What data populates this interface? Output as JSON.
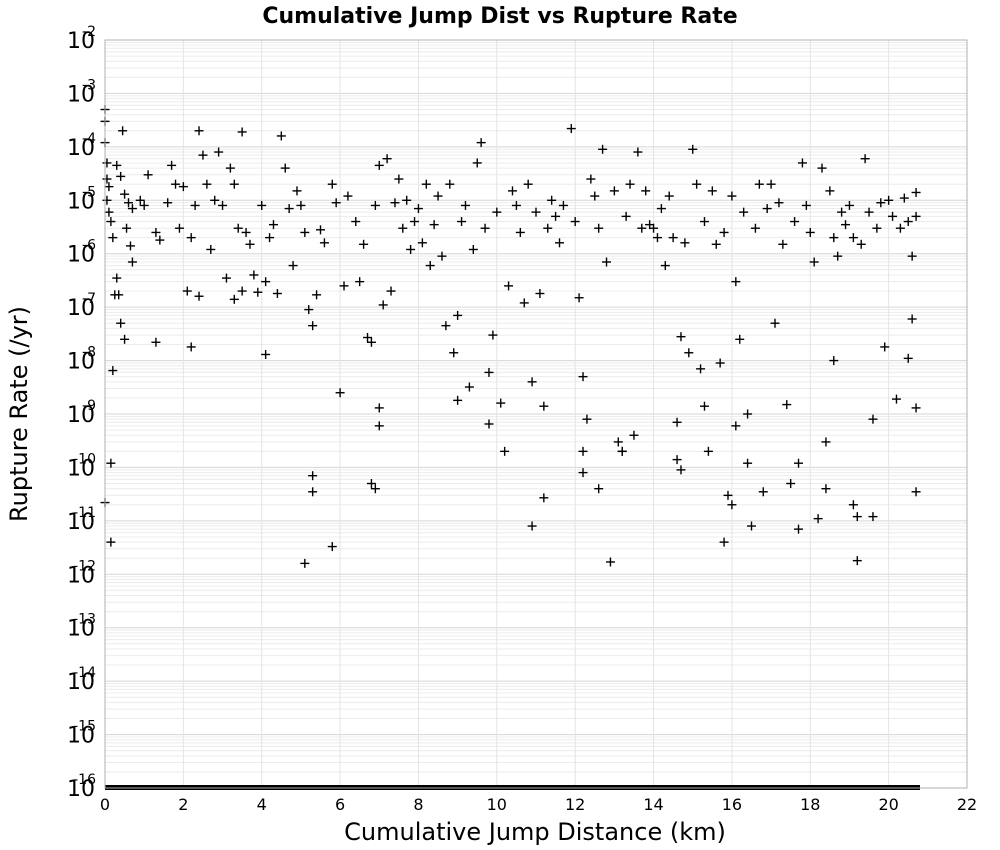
{
  "chart_data": {
    "type": "scatter",
    "title": "Cumulative Jump Dist vs Rupture Rate",
    "xlabel": "Cumulative Jump Distance (km)",
    "ylabel": "Rupture Rate (/yr)",
    "xlim": [
      0,
      22
    ],
    "ylim": [
      1e-16,
      0.01
    ],
    "yscale": "log",
    "grid": true,
    "marker": "+",
    "marker_color": "#000000",
    "x_ticks": [
      "0",
      "2",
      "4",
      "6",
      "8",
      "10",
      "12",
      "14",
      "16",
      "18",
      "20",
      "22"
    ],
    "y_ticks": [
      {
        "base": "10",
        "exp": "-16"
      },
      {
        "base": "10",
        "exp": "-15"
      },
      {
        "base": "10",
        "exp": "-14"
      },
      {
        "base": "10",
        "exp": "-13"
      },
      {
        "base": "10",
        "exp": "-12"
      },
      {
        "base": "10",
        "exp": "-11"
      },
      {
        "base": "10",
        "exp": "-10"
      },
      {
        "base": "10",
        "exp": "-9"
      },
      {
        "base": "10",
        "exp": "-8"
      },
      {
        "base": "10",
        "exp": "-7"
      },
      {
        "base": "10",
        "exp": "-6"
      },
      {
        "base": "10",
        "exp": "-5"
      },
      {
        "base": "10",
        "exp": "-4"
      },
      {
        "base": "10",
        "exp": "-3"
      },
      {
        "base": "10",
        "exp": "-2"
      }
    ],
    "zero_rate_band": {
      "x_range": [
        0,
        20.8
      ],
      "y": 1e-16
    },
    "points": [
      [
        0.0,
        0.0005
      ],
      [
        0.0,
        0.0003
      ],
      [
        0.0,
        0.00012
      ],
      [
        0.05,
        5e-05
      ],
      [
        0.05,
        2.5e-05
      ],
      [
        0.1,
        1.8e-05
      ],
      [
        0.05,
        1e-05
      ],
      [
        0.1,
        6e-06
      ],
      [
        0.15,
        4e-06
      ],
      [
        0.2,
        2e-06
      ],
      [
        0.25,
        1.7e-07
      ],
      [
        0.3,
        3.5e-07
      ],
      [
        0.35,
        1.7e-07
      ],
      [
        0.4,
        5e-08
      ],
      [
        0.5,
        2.5e-08
      ],
      [
        0.2,
        6.5e-09
      ],
      [
        0.15,
        1.2e-10
      ],
      [
        0.0,
        2.2e-11
      ],
      [
        0.15,
        4e-12
      ],
      [
        0.45,
        0.0002
      ],
      [
        0.3,
        4.5e-05
      ],
      [
        0.4,
        2.8e-05
      ],
      [
        0.5,
        1.3e-05
      ],
      [
        0.6,
        9e-06
      ],
      [
        0.7,
        7e-06
      ],
      [
        0.55,
        3e-06
      ],
      [
        0.65,
        1.4e-06
      ],
      [
        0.7,
        7e-07
      ],
      [
        0.9,
        1e-05
      ],
      [
        1.0,
        8e-06
      ],
      [
        1.1,
        3e-05
      ],
      [
        1.3,
        2.5e-06
      ],
      [
        1.4,
        1.8e-06
      ],
      [
        1.6,
        9e-06
      ],
      [
        1.7,
        4.5e-05
      ],
      [
        1.8,
        2e-05
      ],
      [
        1.9,
        3e-06
      ],
      [
        1.3,
        2.2e-08
      ],
      [
        2.0,
        1.8e-05
      ],
      [
        2.1,
        2e-07
      ],
      [
        2.2,
        2e-06
      ],
      [
        2.3,
        8e-06
      ],
      [
        2.4,
        0.0002
      ],
      [
        2.5,
        7e-05
      ],
      [
        2.6,
        2e-05
      ],
      [
        2.7,
        1.2e-06
      ],
      [
        2.8,
        1e-05
      ],
      [
        2.9,
        8e-05
      ],
      [
        2.2,
        1.8e-08
      ],
      [
        2.4,
        1.6e-07
      ],
      [
        3.0,
        8e-06
      ],
      [
        3.1,
        3.5e-07
      ],
      [
        3.2,
        4e-05
      ],
      [
        3.3,
        2e-05
      ],
      [
        3.4,
        3e-06
      ],
      [
        3.5,
        0.00019
      ],
      [
        3.6,
        2.5e-06
      ],
      [
        3.7,
        1.5e-06
      ],
      [
        3.8,
        4e-07
      ],
      [
        3.9,
        1.9e-07
      ],
      [
        3.3,
        1.4e-07
      ],
      [
        3.5,
        2e-07
      ],
      [
        4.0,
        8e-06
      ],
      [
        4.1,
        3e-07
      ],
      [
        4.2,
        2e-06
      ],
      [
        4.3,
        3.5e-06
      ],
      [
        4.5,
        0.00016
      ],
      [
        4.6,
        4e-05
      ],
      [
        4.7,
        7e-06
      ],
      [
        4.8,
        6e-07
      ],
      [
        4.9,
        1.5e-05
      ],
      [
        4.4,
        1.8e-07
      ],
      [
        4.1,
        1.3e-08
      ],
      [
        5.0,
        8e-06
      ],
      [
        5.1,
        2.5e-06
      ],
      [
        5.2,
        9e-08
      ],
      [
        5.3,
        4.5e-08
      ],
      [
        5.4,
        1.7e-07
      ],
      [
        5.5,
        2.8e-06
      ],
      [
        5.6,
        1.6e-06
      ],
      [
        5.8,
        2e-05
      ],
      [
        5.9,
        9e-06
      ],
      [
        5.3,
        7e-11
      ],
      [
        5.3,
        3.5e-11
      ],
      [
        5.1,
        1.6e-12
      ],
      [
        6.0,
        2.5e-09
      ],
      [
        6.1,
        2.5e-07
      ],
      [
        6.2,
        1.2e-05
      ],
      [
        6.4,
        4e-06
      ],
      [
        6.5,
        3e-07
      ],
      [
        6.6,
        1.5e-06
      ],
      [
        6.7,
        2.7e-08
      ],
      [
        6.8,
        2.2e-08
      ],
      [
        6.9,
        8e-06
      ],
      [
        5.8,
        3.3e-12
      ],
      [
        7.0,
        4.5e-05
      ],
      [
        7.1,
        1.1e-07
      ],
      [
        7.2,
        6e-05
      ],
      [
        7.3,
        2e-07
      ],
      [
        7.4,
        9e-06
      ],
      [
        7.5,
        2.5e-05
      ],
      [
        7.6,
        3e-06
      ],
      [
        7.7,
        1e-05
      ],
      [
        7.8,
        1.2e-06
      ],
      [
        7.9,
        4e-06
      ],
      [
        7.0,
        1.3e-09
      ],
      [
        7.0,
        6e-10
      ],
      [
        6.8,
        5e-11
      ],
      [
        6.9,
        4e-11
      ],
      [
        8.0,
        7e-06
      ],
      [
        8.1,
        1.6e-06
      ],
      [
        8.2,
        2e-05
      ],
      [
        8.3,
        6e-07
      ],
      [
        8.4,
        3.5e-06
      ],
      [
        8.5,
        1.2e-05
      ],
      [
        8.6,
        9e-07
      ],
      [
        8.7,
        4.5e-08
      ],
      [
        8.8,
        2e-05
      ],
      [
        8.9,
        1.4e-08
      ],
      [
        9.0,
        1.8e-09
      ],
      [
        9.1,
        4e-06
      ],
      [
        9.2,
        8e-06
      ],
      [
        9.3,
        3.2e-09
      ],
      [
        9.4,
        1.2e-06
      ],
      [
        9.5,
        5e-05
      ],
      [
        9.6,
        0.00012
      ],
      [
        9.7,
        3e-06
      ],
      [
        9.8,
        6e-09
      ],
      [
        9.9,
        3e-08
      ],
      [
        9.0,
        7e-08
      ],
      [
        9.8,
        6.5e-10
      ],
      [
        10.0,
        6e-06
      ],
      [
        10.1,
        1.6e-09
      ],
      [
        10.2,
        2e-10
      ],
      [
        10.3,
        2.5e-07
      ],
      [
        10.4,
        1.5e-05
      ],
      [
        10.5,
        8e-06
      ],
      [
        10.6,
        2.5e-06
      ],
      [
        10.7,
        1.2e-07
      ],
      [
        10.8,
        2e-05
      ],
      [
        10.9,
        4e-09
      ],
      [
        11.0,
        6e-06
      ],
      [
        11.1,
        1.8e-07
      ],
      [
        11.2,
        1.4e-09
      ],
      [
        11.3,
        3e-06
      ],
      [
        11.4,
        1e-05
      ],
      [
        11.5,
        5e-06
      ],
      [
        11.6,
        1.6e-06
      ],
      [
        11.7,
        8e-06
      ],
      [
        11.9,
        0.00022
      ],
      [
        11.2,
        2.7e-11
      ],
      [
        10.9,
        8e-12
      ],
      [
        12.0,
        4e-06
      ],
      [
        12.1,
        1.5e-07
      ],
      [
        12.2,
        5e-09
      ],
      [
        12.3,
        8e-10
      ],
      [
        12.4,
        2.5e-05
      ],
      [
        12.5,
        1.2e-05
      ],
      [
        12.6,
        3e-06
      ],
      [
        12.7,
        9e-05
      ],
      [
        12.8,
        7e-07
      ],
      [
        12.9,
        1.7e-12
      ],
      [
        12.2,
        2e-10
      ],
      [
        12.2,
        8e-11
      ],
      [
        12.6,
        4e-11
      ],
      [
        13.0,
        1.5e-05
      ],
      [
        13.1,
        3e-10
      ],
      [
        13.2,
        2e-10
      ],
      [
        13.3,
        5e-06
      ],
      [
        13.4,
        2e-05
      ],
      [
        13.5,
        4e-10
      ],
      [
        13.6,
        8e-05
      ],
      [
        13.7,
        3e-06
      ],
      [
        13.8,
        1.5e-05
      ],
      [
        13.9,
        3.5e-06
      ],
      [
        13.2,
        2e-10
      ],
      [
        14.0,
        3e-06
      ],
      [
        14.1,
        2e-06
      ],
      [
        14.2,
        7e-06
      ],
      [
        14.3,
        6e-07
      ],
      [
        14.4,
        1.2e-05
      ],
      [
        14.5,
        2e-06
      ],
      [
        14.6,
        7e-10
      ],
      [
        14.7,
        2.8e-08
      ],
      [
        14.8,
        1.6e-06
      ],
      [
        14.9,
        1.4e-08
      ],
      [
        14.6,
        1.4e-10
      ],
      [
        14.7,
        9e-11
      ],
      [
        15.0,
        9e-05
      ],
      [
        15.1,
        2e-05
      ],
      [
        15.2,
        7e-09
      ],
      [
        15.3,
        4e-06
      ],
      [
        15.4,
        2e-10
      ],
      [
        15.5,
        1.5e-05
      ],
      [
        15.6,
        1.5e-06
      ],
      [
        15.7,
        9e-09
      ],
      [
        15.8,
        2.5e-06
      ],
      [
        15.9,
        3e-11
      ],
      [
        15.8,
        4e-12
      ],
      [
        15.3,
        1.4e-09
      ],
      [
        16.0,
        1.2e-05
      ],
      [
        16.1,
        3e-07
      ],
      [
        16.2,
        2.5e-08
      ],
      [
        16.3,
        6e-06
      ],
      [
        16.4,
        1e-09
      ],
      [
        16.5,
        8e-12
      ],
      [
        16.6,
        3e-06
      ],
      [
        16.7,
        2e-05
      ],
      [
        16.8,
        3.5e-11
      ],
      [
        16.9,
        7e-06
      ],
      [
        16.0,
        2e-11
      ],
      [
        16.1,
        6e-10
      ],
      [
        16.4,
        1.2e-10
      ],
      [
        17.0,
        2e-05
      ],
      [
        17.1,
        5e-08
      ],
      [
        17.2,
        9e-06
      ],
      [
        17.3,
        1.5e-06
      ],
      [
        17.4,
        1.5e-09
      ],
      [
        17.5,
        5e-11
      ],
      [
        17.6,
        4e-06
      ],
      [
        17.7,
        1.2e-10
      ],
      [
        17.8,
        5e-05
      ],
      [
        17.9,
        8e-06
      ],
      [
        17.7,
        7e-12
      ],
      [
        18.0,
        2.5e-06
      ],
      [
        18.1,
        7e-07
      ],
      [
        18.2,
        1.1e-11
      ],
      [
        18.3,
        4e-05
      ],
      [
        18.4,
        3e-10
      ],
      [
        18.5,
        1.5e-05
      ],
      [
        18.6,
        2e-06
      ],
      [
        18.7,
        9e-07
      ],
      [
        18.8,
        6e-06
      ],
      [
        18.9,
        3.5e-06
      ],
      [
        18.4,
        4e-11
      ],
      [
        18.6,
        1e-08
      ],
      [
        19.0,
        8e-06
      ],
      [
        19.1,
        2e-06
      ],
      [
        19.2,
        1.2e-11
      ],
      [
        19.3,
        1.5e-06
      ],
      [
        19.4,
        6e-05
      ],
      [
        19.5,
        6e-06
      ],
      [
        19.6,
        8e-10
      ],
      [
        19.7,
        3e-06
      ],
      [
        19.8,
        9e-06
      ],
      [
        19.9,
        1.8e-08
      ],
      [
        19.2,
        1.8e-12
      ],
      [
        19.1,
        2e-11
      ],
      [
        19.6,
        1.2e-11
      ],
      [
        20.0,
        1e-05
      ],
      [
        20.1,
        5e-06
      ],
      [
        20.2,
        1.9e-09
      ],
      [
        20.3,
        3e-06
      ],
      [
        20.4,
        1.1e-05
      ],
      [
        20.5,
        1.1e-08
      ],
      [
        20.6,
        6e-08
      ],
      [
        20.7,
        1.4e-05
      ],
      [
        20.7,
        1.3e-09
      ],
      [
        20.7,
        3.5e-11
      ],
      [
        20.6,
        9e-07
      ],
      [
        20.5,
        4e-06
      ],
      [
        20.7,
        5e-06
      ]
    ]
  }
}
